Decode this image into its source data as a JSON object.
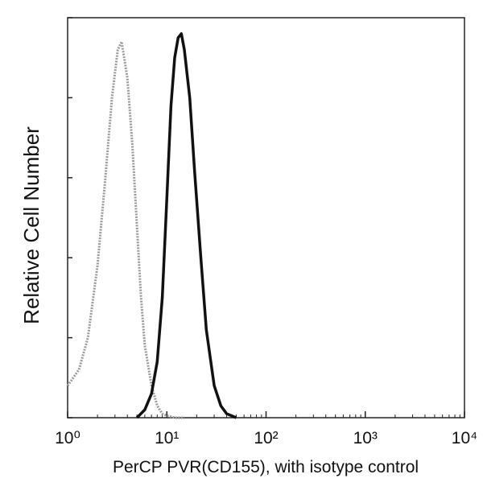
{
  "chart_data": {
    "type": "line",
    "xlabel": "PerCP PVR(CD155), with isotype control",
    "ylabel": "Relative Cell Number",
    "xscale": "log",
    "xlim": [
      1,
      10000
    ],
    "xticks": [
      {
        "value": 1,
        "label": "10⁰"
      },
      {
        "value": 10,
        "label": "10¹"
      },
      {
        "value": 100,
        "label": "10²"
      },
      {
        "value": 1000,
        "label": "10³"
      },
      {
        "value": 10000,
        "label": "10⁴"
      }
    ],
    "ylim": [
      0,
      100
    ],
    "yticks": [
      0,
      20,
      40,
      60,
      80,
      100
    ],
    "series": [
      {
        "color": "#9a9a9a",
        "dashed": true,
        "x": [
          1,
          1.3,
          1.6,
          2,
          2.4,
          2.8,
          3.2,
          3.5,
          4,
          4.5,
          5,
          5.5,
          6,
          7,
          8,
          9,
          10,
          12,
          15
        ],
        "values": [
          8,
          12,
          20,
          38,
          60,
          80,
          92,
          94,
          85,
          68,
          48,
          30,
          18,
          8,
          3,
          1,
          0.5,
          0,
          0
        ]
      },
      {
        "color": "#111111",
        "dashed": false,
        "x": [
          5,
          6,
          7,
          8,
          9,
          10,
          11,
          12,
          13,
          14,
          15,
          17,
          19,
          22,
          25,
          30,
          35,
          40,
          50
        ],
        "values": [
          0,
          2,
          6,
          14,
          30,
          55,
          78,
          90,
          95,
          96,
          92,
          80,
          62,
          40,
          22,
          8,
          3,
          1,
          0
        ]
      }
    ]
  }
}
